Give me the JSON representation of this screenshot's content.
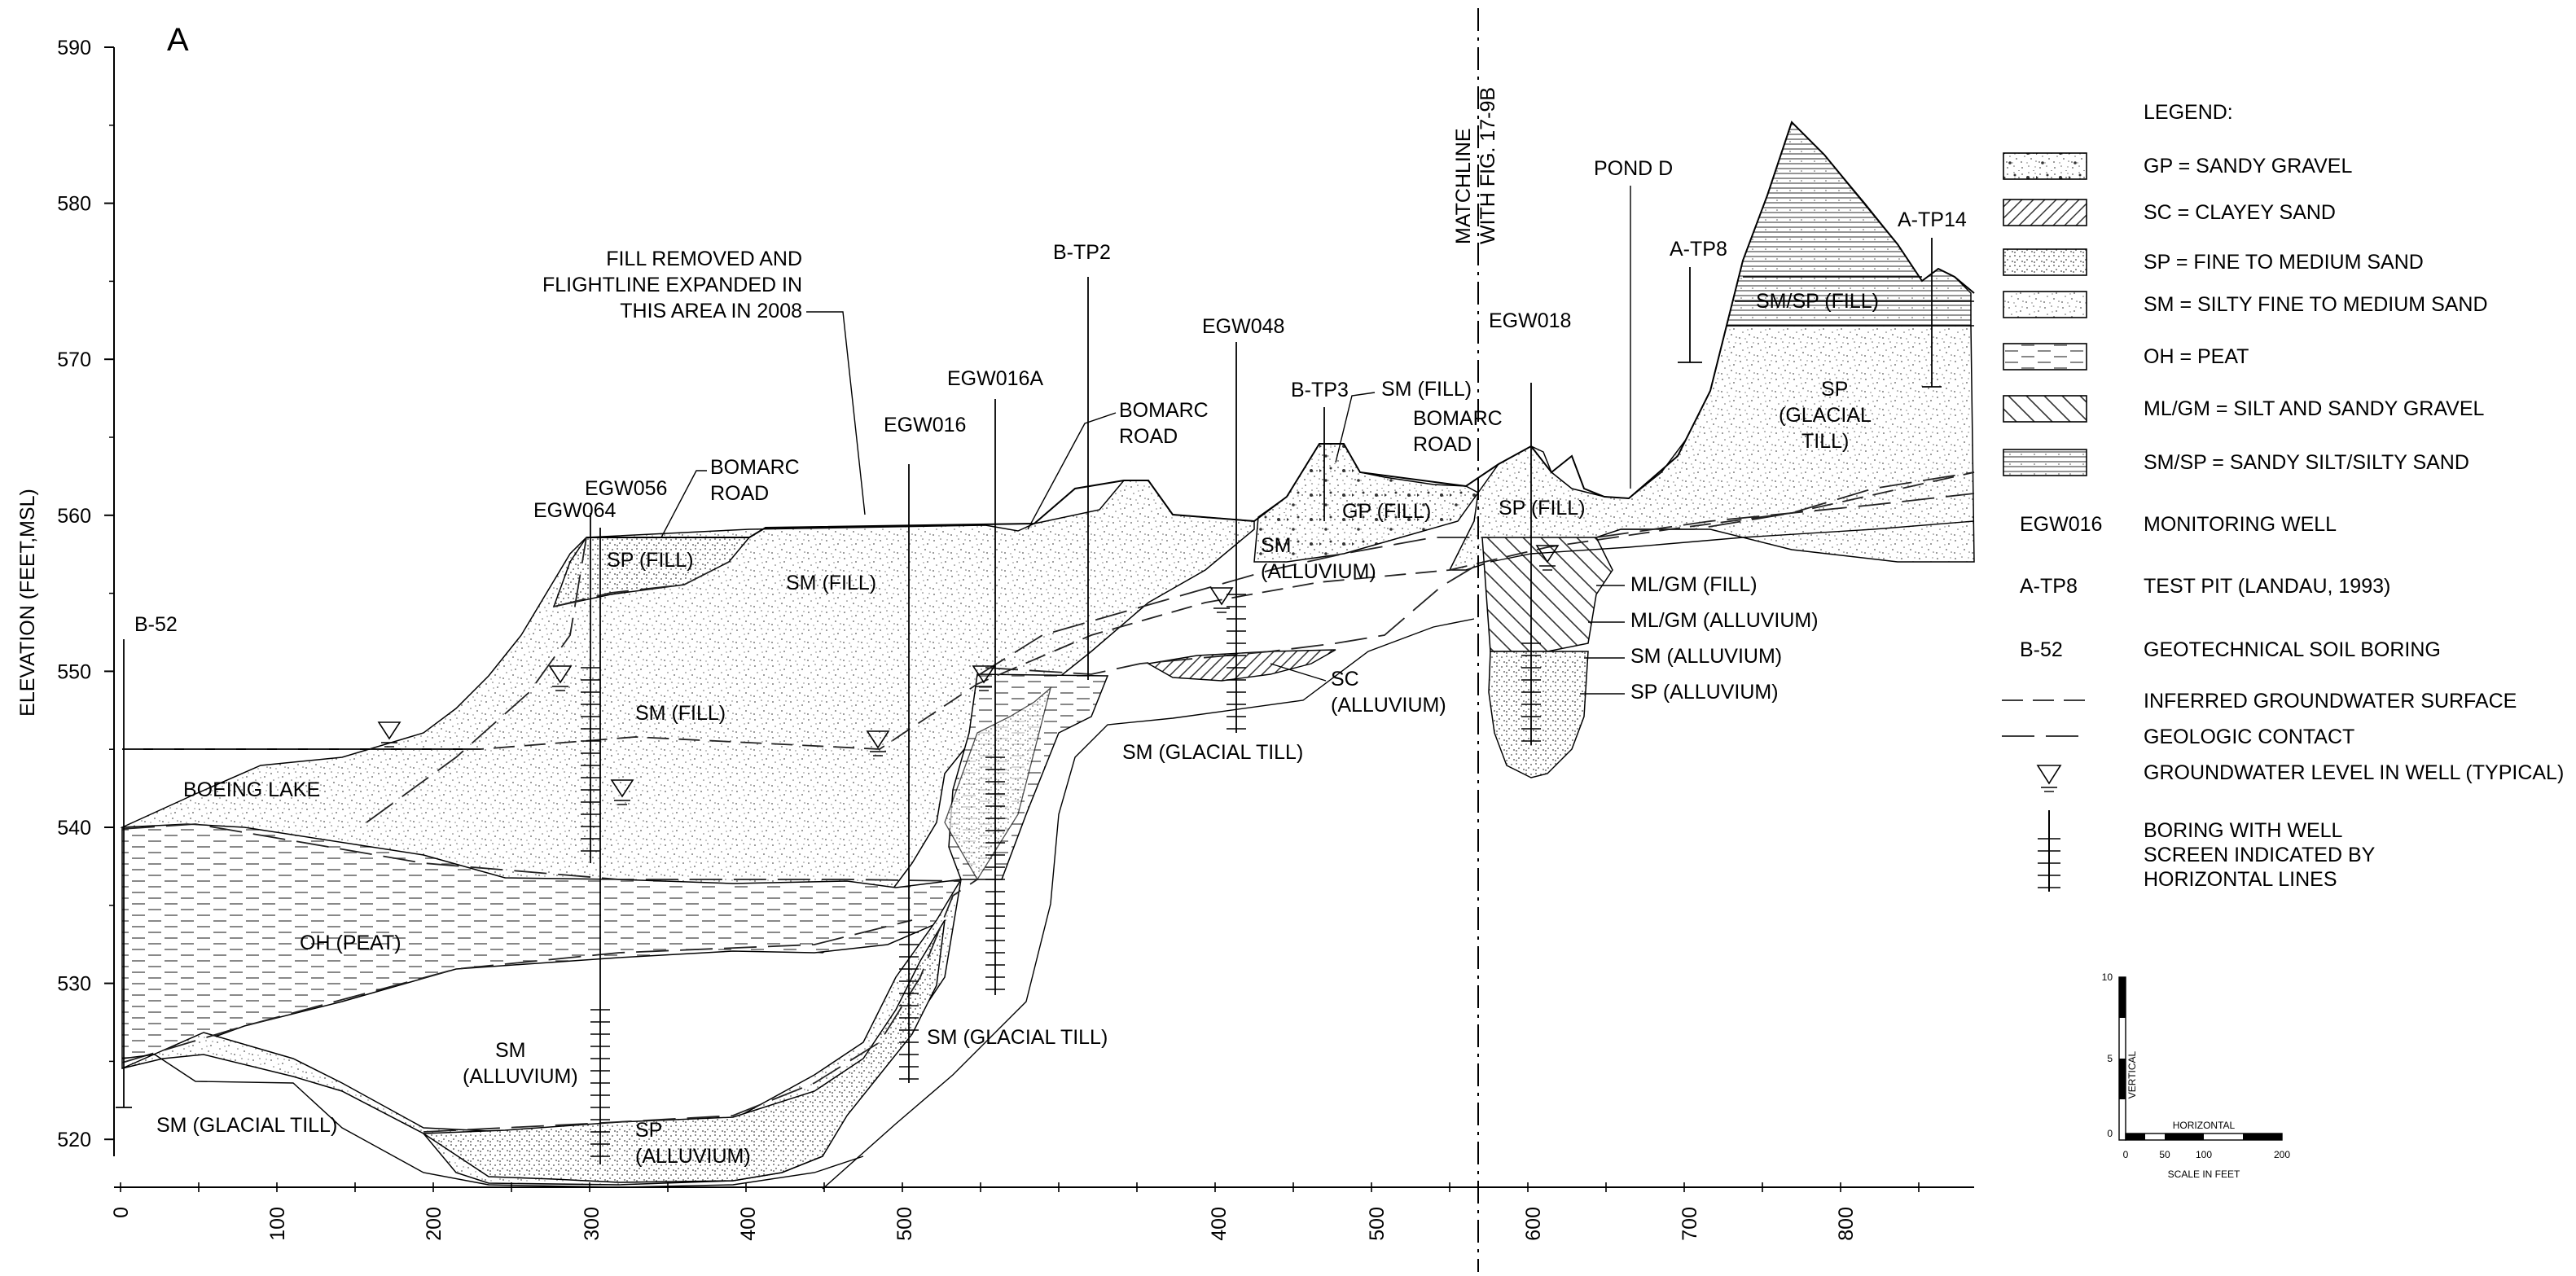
{
  "panel_letter": "A",
  "y_axis": {
    "title": "ELEVATION (FEET,MSL)",
    "ticks": [
      "590",
      "580",
      "570",
      "560",
      "550",
      "540",
      "530",
      "520"
    ]
  },
  "x_axis": {
    "ticks": [
      "0",
      "100",
      "200",
      "300",
      "400",
      "500",
      "600",
      "700",
      "800",
      "400",
      "500",
      "600",
      "700",
      "800"
    ]
  },
  "matchline": "MATCHLINE WITH FIG. 17-9B",
  "annotations": {
    "fill_note": [
      "FILL REMOVED AND",
      "FLIGHTLINE EXPANDED IN",
      "THIS AREA IN 2008"
    ],
    "bomarc_road_1": [
      "BOMARC",
      "ROAD"
    ],
    "bomarc_road_2": [
      "BOMARC",
      "ROAD"
    ],
    "bomarc_road_3": [
      "BOMARC",
      "ROAD"
    ],
    "pond_d": "POND D",
    "boeing_lake": "BOEING LAKE"
  },
  "wells": {
    "b52": "B-52",
    "egw064": "EGW064",
    "egw056": "EGW056",
    "egw016": "EGW016",
    "egw016a": "EGW016A",
    "btp2": "B-TP2",
    "egw048": "EGW048",
    "btp3": "B-TP3",
    "egw018": "EGW018",
    "atp8": "A-TP8",
    "atp14": "A-TP14"
  },
  "units": {
    "sp_fill": "SP (FILL)",
    "sm_fill_1": "SM (FILL)",
    "sm_fill_2": "SM (FILL)",
    "sm_fill_3": "SM (FILL)",
    "oh_peat": "OH (PEAT)",
    "sm_alluvium_1": [
      "SM",
      "(ALLUVIUM)"
    ],
    "sp_alluvium_1": [
      "SP",
      "(ALLUVIUM)"
    ],
    "sm_glacial_till_1": "SM (GLACIAL TILL)",
    "sm_glacial_till_2": "SM (GLACIAL TILL)",
    "sm_glacial_till_3": "SM (GLACIAL TILL)",
    "gp_fill": "GP (FILL)",
    "sm_alluvium_2": [
      "SM",
      "(ALLUVIUM)"
    ],
    "sc_alluvium": [
      "SC",
      "(ALLUVIUM)"
    ],
    "sp_fill_2": "SP (FILL)",
    "mlgm_fill": "ML/GM (FILL)",
    "mlgm_alluvium": "ML/GM (ALLUVIUM)",
    "sm_alluvium_3": "SM (ALLUVIUM)",
    "sp_alluvium_2": "SP (ALLUVIUM)",
    "smsp_fill": "SM/SP (FILL)",
    "sp_glacial_till": [
      "SP",
      "(GLACIAL",
      "TILL)"
    ]
  },
  "legend": {
    "title": "LEGEND:",
    "items": [
      "GP = SANDY GRAVEL",
      "SC = CLAYEY SAND",
      "SP = FINE TO MEDIUM SAND",
      "SM = SILTY FINE TO MEDIUM SAND",
      "OH = PEAT",
      "ML/GM = SILT AND SANDY GRAVEL",
      "SM/SP = SANDY SILT/SILTY SAND"
    ],
    "symbols": [
      {
        "code": "EGW016",
        "desc": "MONITORING WELL"
      },
      {
        "code": "A-TP8",
        "desc": "TEST PIT (LANDAU, 1993)"
      },
      {
        "code": "B-52",
        "desc": "GEOTECHNICAL SOIL BORING"
      }
    ],
    "lines": [
      "INFERRED GROUNDWATER SURFACE",
      "GEOLOGIC CONTACT",
      "GROUNDWATER LEVEL IN WELL (TYPICAL)"
    ],
    "boring": [
      "BORING WITH WELL",
      "SCREEN INDICATED BY",
      "HORIZONTAL LINES"
    ]
  },
  "scale": {
    "vertical_label": "VERTICAL",
    "horizontal_label": "HORIZONTAL",
    "caption": "SCALE IN FEET",
    "v_ticks": [
      "10",
      "5",
      "0"
    ],
    "h_ticks": [
      "0",
      "50",
      "100",
      "200"
    ]
  }
}
